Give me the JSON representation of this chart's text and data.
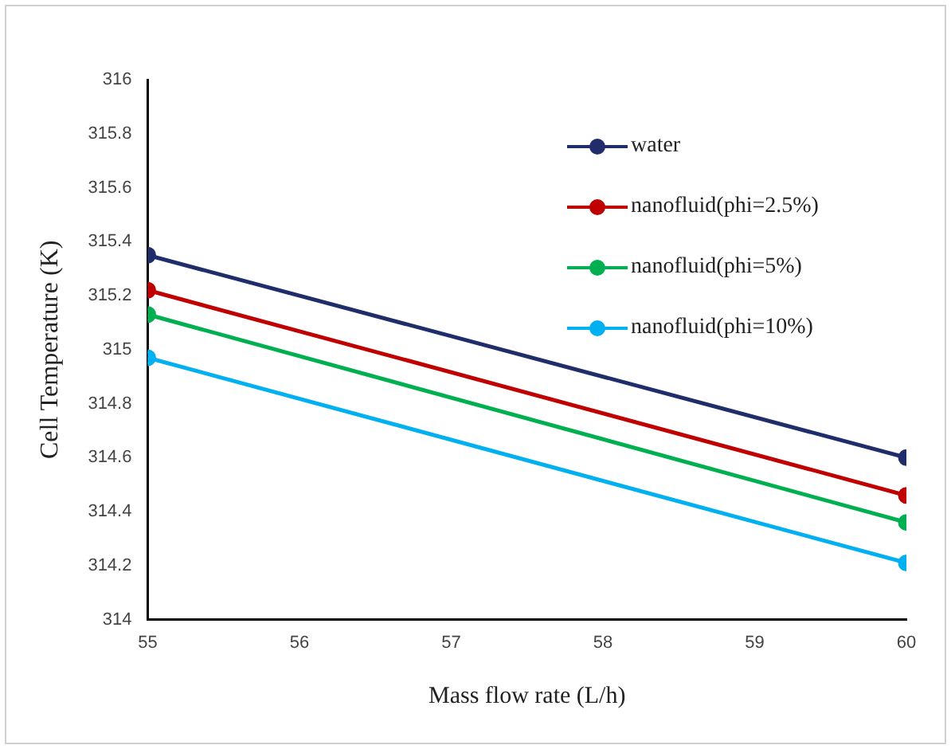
{
  "chart_data": {
    "type": "line",
    "xlabel": "Mass flow rate (L/h)",
    "ylabel": "Cell Temperature (K)",
    "x": [
      55,
      60
    ],
    "series": [
      {
        "name": "water",
        "color": "#1f2d6b",
        "values": [
          315.35,
          314.6
        ]
      },
      {
        "name": "nanofluid(phi=2.5%)",
        "color": "#c00000",
        "values": [
          315.22,
          314.46
        ]
      },
      {
        "name": "nanofluid(phi=5%)",
        "color": "#00b050",
        "values": [
          315.13,
          314.36
        ]
      },
      {
        "name": "nanofluid(phi=10%)",
        "color": "#00b0f0",
        "values": [
          314.97,
          314.21
        ]
      }
    ],
    "xlim": [
      55,
      60
    ],
    "xticks": [
      55,
      56,
      57,
      58,
      59,
      60
    ],
    "ylim": [
      314,
      316
    ],
    "yticks": [
      314,
      314.2,
      314.4,
      314.6,
      314.8,
      315,
      315.2,
      315.4,
      315.6,
      315.8,
      316
    ],
    "grid": false,
    "legend": "top right",
    "marker": "circle",
    "line_style": "solid"
  }
}
